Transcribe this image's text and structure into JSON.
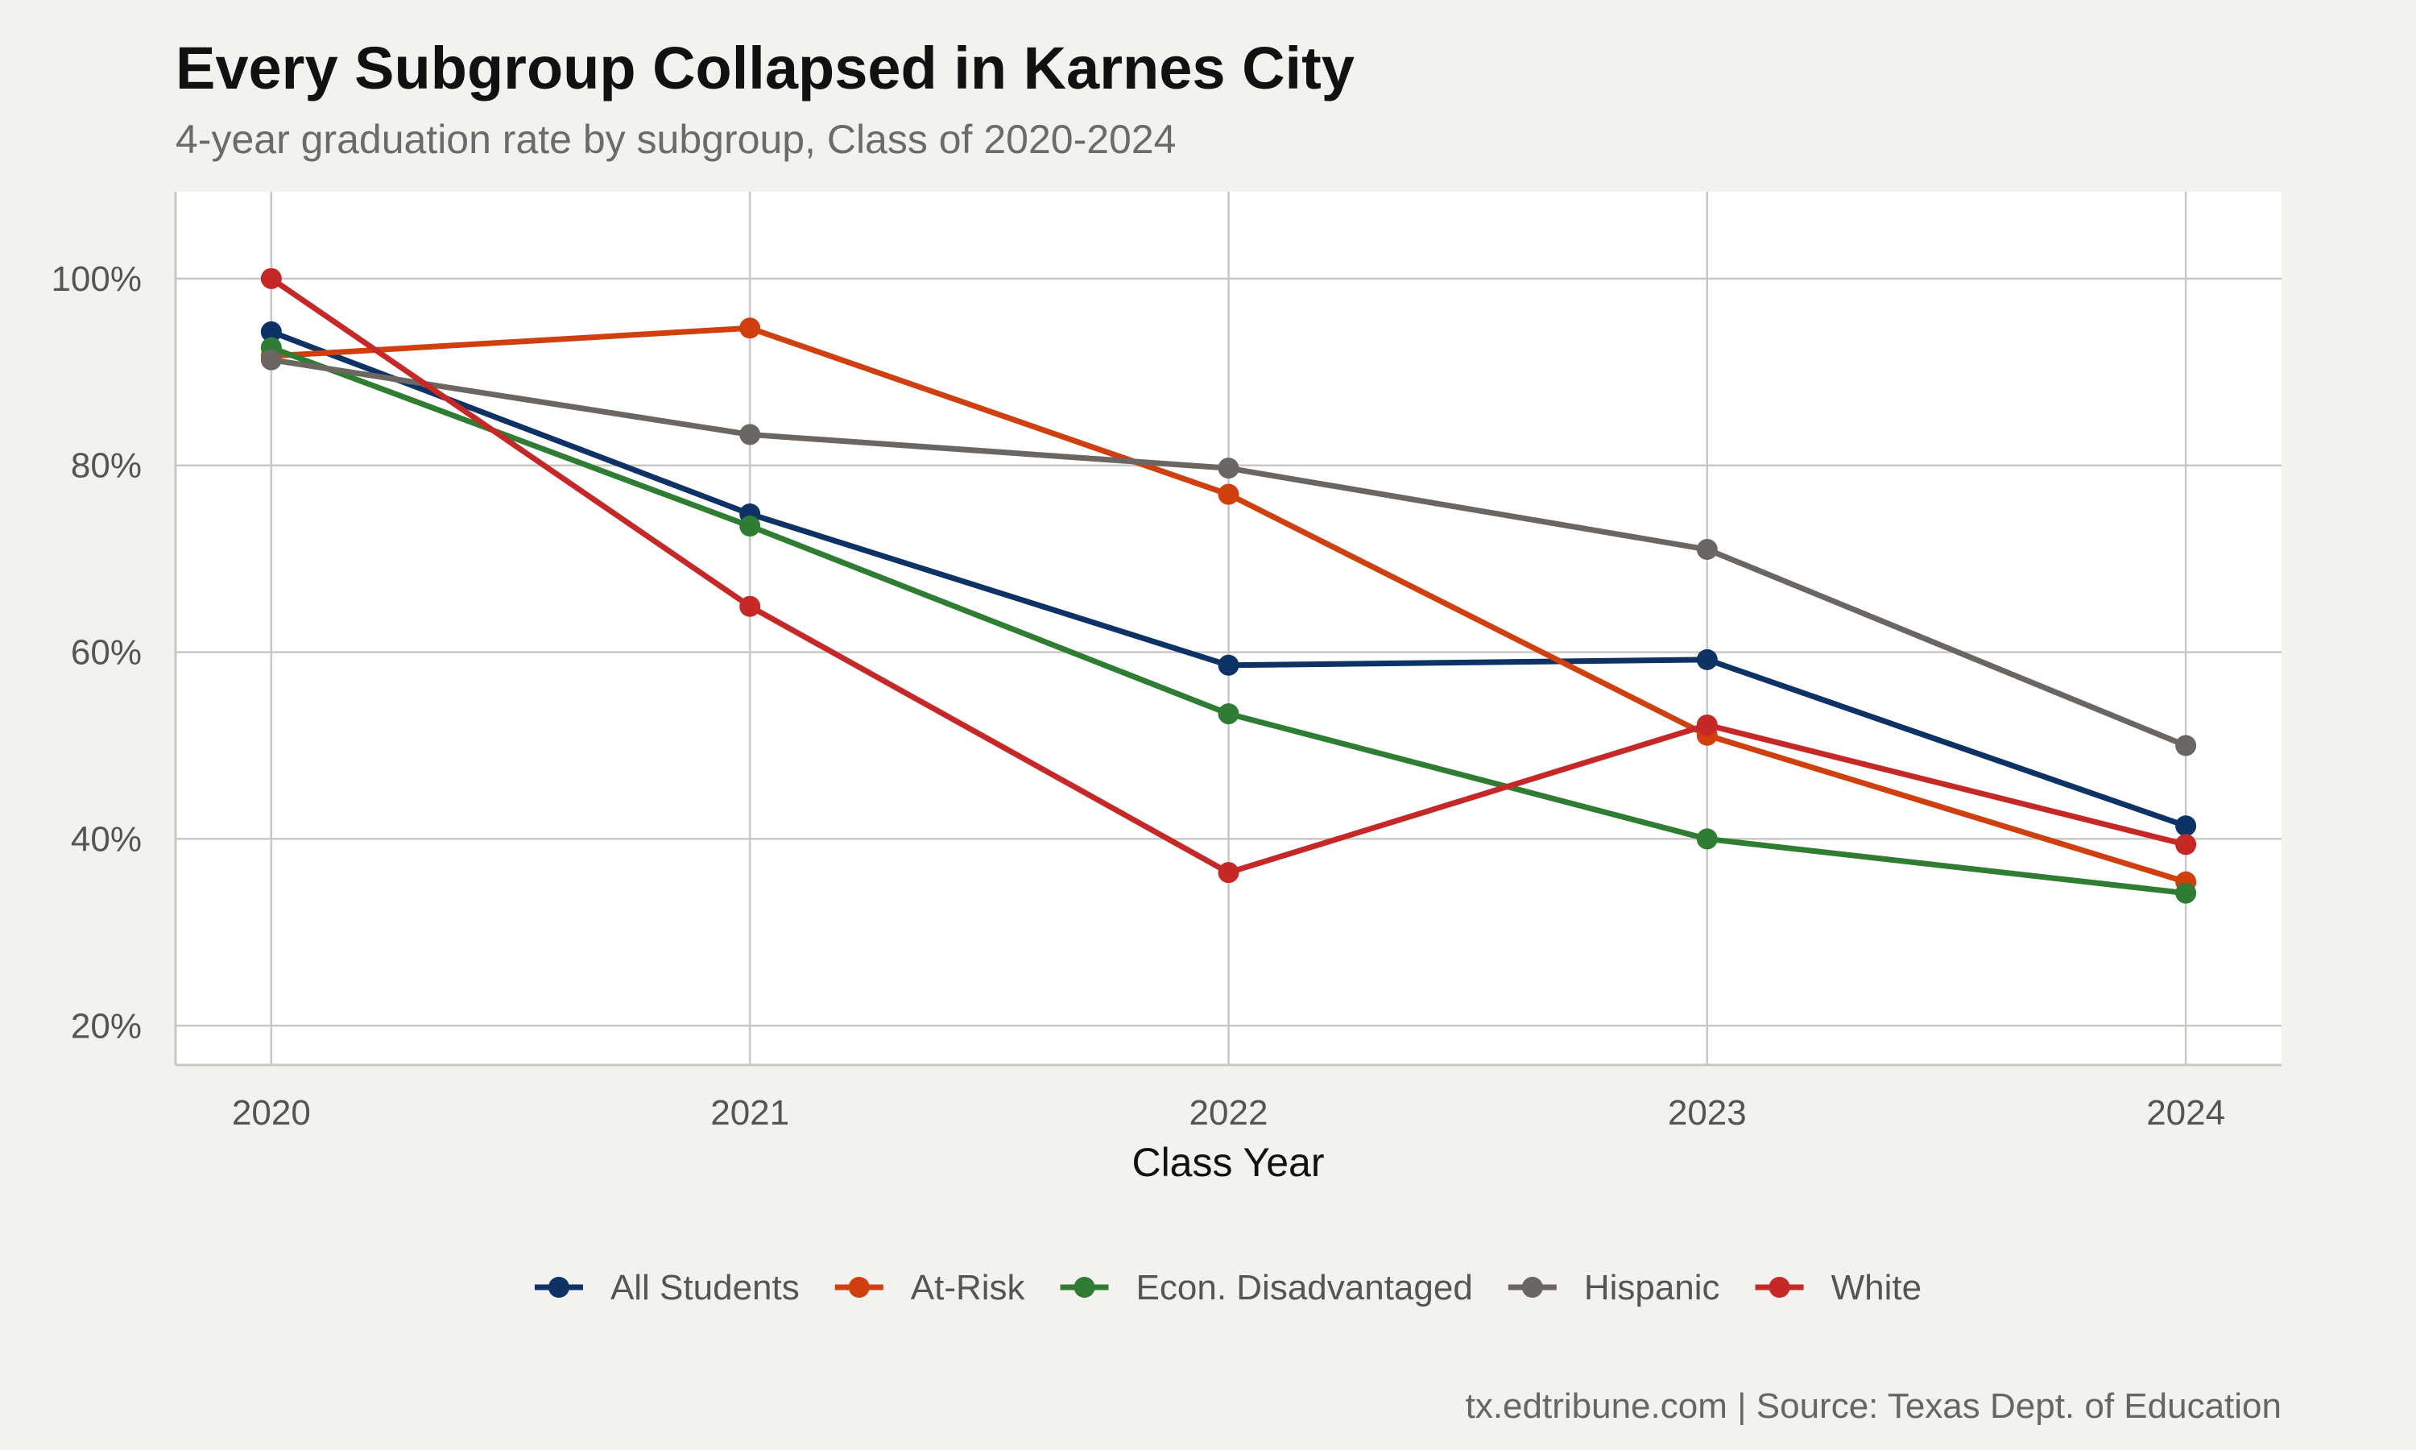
{
  "chart_data": {
    "type": "line",
    "title": "Every Subgroup Collapsed in Karnes City",
    "subtitle": "4-year graduation rate by subgroup, Class of 2020-2024",
    "xlabel": "Class Year",
    "ylabel": "",
    "caption": "tx.edtribune.com | Source: Texas Dept. of Education",
    "x": [
      2020,
      2021,
      2022,
      2023,
      2024
    ],
    "x_tick_labels": [
      "2020",
      "2021",
      "2022",
      "2023",
      "2024"
    ],
    "xlim": [
      2019.8,
      2024.2
    ],
    "ylim": [
      15.8,
      109.3
    ],
    "y_ticks": [
      20,
      40,
      60,
      80,
      100
    ],
    "y_tick_labels": [
      "20%",
      "40%",
      "60%",
      "80%",
      "100%"
    ],
    "grid": true,
    "legend_position": "bottom",
    "series": [
      {
        "name": "All Students",
        "color": "#0d3366",
        "values": [
          94.3,
          74.8,
          58.6,
          59.2,
          41.4
        ]
      },
      {
        "name": "At-Risk",
        "color": "#d0400f",
        "values": [
          91.7,
          94.7,
          76.9,
          51.1,
          35.4
        ]
      },
      {
        "name": "Econ. Disadvantaged",
        "color": "#2e7d32",
        "values": [
          92.6,
          73.5,
          53.4,
          40.0,
          34.2
        ]
      },
      {
        "name": "Hispanic",
        "color": "#6b6662",
        "values": [
          91.3,
          83.3,
          79.7,
          71.0,
          50.0
        ]
      },
      {
        "name": "White",
        "color": "#c62828",
        "values": [
          100.0,
          64.9,
          36.4,
          52.2,
          39.4
        ]
      }
    ]
  },
  "colors": {
    "background": "#f4f2ee",
    "panel": "#ffffff",
    "grid": "#c9c7c2"
  }
}
